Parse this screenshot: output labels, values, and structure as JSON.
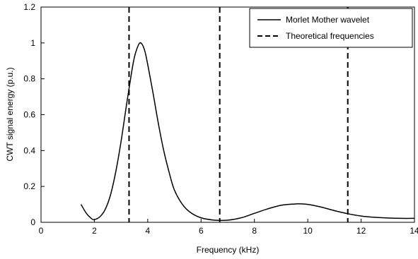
{
  "chart_data": {
    "type": "line",
    "title": "",
    "xlabel": "Frequency (kHz)",
    "ylabel": "CWT signal energy (p.u.)",
    "xlim": [
      0,
      14
    ],
    "ylim": [
      0,
      1.2
    ],
    "x_ticks": [
      0,
      2,
      4,
      6,
      8,
      10,
      12,
      14
    ],
    "x_tick_labels": [
      "0",
      "2",
      "4",
      "6",
      "8",
      "10",
      "12",
      "14"
    ],
    "y_ticks": [
      0,
      0.2,
      0.4,
      0.6,
      0.8,
      1.0,
      1.2
    ],
    "y_tick_labels": [
      "0",
      "0.2",
      "0.4",
      "0.6",
      "0.8",
      "1",
      "1.2"
    ],
    "grid": false,
    "legend_position": "top-right",
    "series": [
      {
        "name": "Morlet Mother wavelet",
        "style": "solid",
        "color": "#000000",
        "x": [
          1.5,
          1.7,
          1.9,
          2.0,
          2.2,
          2.4,
          2.6,
          2.8,
          3.0,
          3.2,
          3.4,
          3.5,
          3.6,
          3.7,
          3.8,
          3.9,
          4.0,
          4.2,
          4.4,
          4.6,
          4.8,
          5.0,
          5.3,
          5.6,
          6.0,
          6.5,
          7.0,
          7.5,
          8.0,
          8.5,
          9.0,
          9.5,
          9.7,
          10.0,
          10.5,
          11.0,
          11.5,
          12.0,
          12.5,
          13.0,
          13.5,
          14.0
        ],
        "y": [
          0.1,
          0.05,
          0.02,
          0.015,
          0.03,
          0.07,
          0.15,
          0.28,
          0.45,
          0.65,
          0.84,
          0.92,
          0.97,
          1.0,
          0.99,
          0.95,
          0.88,
          0.72,
          0.55,
          0.4,
          0.28,
          0.18,
          0.1,
          0.055,
          0.025,
          0.012,
          0.012,
          0.025,
          0.05,
          0.075,
          0.095,
          0.102,
          0.103,
          0.1,
          0.085,
          0.065,
          0.048,
          0.035,
          0.028,
          0.024,
          0.022,
          0.022
        ]
      },
      {
        "name": "Theoretical frequencies",
        "style": "dashed",
        "color": "#000000",
        "x_positions": [
          3.3,
          6.7,
          11.5
        ]
      }
    ]
  }
}
